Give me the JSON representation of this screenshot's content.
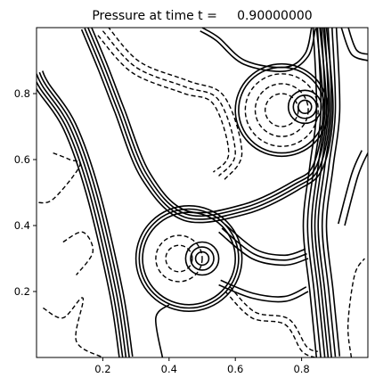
{
  "chart_data": {
    "type": "contour",
    "title": "Pressure at time t =     0.90000000",
    "xlabel": "",
    "ylabel": "",
    "xlim": [
      0.0,
      1.0
    ],
    "ylim": [
      0.0,
      1.0
    ],
    "xticks": [
      {
        "value": 0.2,
        "label": "0.2"
      },
      {
        "value": 0.4,
        "label": "0.4"
      },
      {
        "value": 0.6,
        "label": "0.6"
      },
      {
        "value": 0.8,
        "label": "0.8"
      }
    ],
    "yticks": [
      {
        "value": 0.2,
        "label": "0.2"
      },
      {
        "value": 0.4,
        "label": "0.4"
      },
      {
        "value": 0.6,
        "label": "0.6"
      },
      {
        "value": 0.8,
        "label": "0.8"
      }
    ],
    "grid": false,
    "legend": "none",
    "line_color": "#000000",
    "styles": {
      "positive": "solid",
      "negative": "dashed"
    },
    "features": [
      {
        "kind": "ring",
        "center": [
          0.46,
          0.3
        ],
        "radii": [
          0.14,
          0.15,
          0.16
        ],
        "style": "solid"
      },
      {
        "kind": "ring",
        "center": [
          0.5,
          0.3
        ],
        "radii": [
          0.02,
          0.035,
          0.05
        ],
        "style": "solid"
      },
      {
        "kind": "ring",
        "center": [
          0.43,
          0.3
        ],
        "radii": [
          0.04,
          0.07
        ],
        "style": "dashed"
      },
      {
        "kind": "ring",
        "center": [
          0.74,
          0.75
        ],
        "radii": [
          0.13,
          0.14
        ],
        "style": "solid"
      },
      {
        "kind": "ring",
        "center": [
          0.74,
          0.75
        ],
        "radii": [
          0.05,
          0.08,
          0.11
        ],
        "style": "dashed"
      },
      {
        "kind": "ring",
        "center": [
          0.81,
          0.76
        ],
        "radii": [
          0.02,
          0.035,
          0.05
        ],
        "style": "solid"
      },
      {
        "kind": "band",
        "points": [
          [
            0.27,
            0.0
          ],
          [
            0.24,
            0.2
          ],
          [
            0.17,
            0.5
          ],
          [
            0.1,
            0.7
          ],
          [
            0.02,
            0.82
          ],
          [
            0.0,
            0.86
          ]
        ],
        "offsets": [
          -0.02,
          -0.01,
          0.0,
          0.01,
          0.02
        ],
        "style": "solid"
      },
      {
        "kind": "band",
        "points": [
          [
            0.15,
            1.0
          ],
          [
            0.2,
            0.88
          ],
          [
            0.25,
            0.75
          ],
          [
            0.33,
            0.55
          ],
          [
            0.45,
            0.43
          ],
          [
            0.63,
            0.45
          ],
          [
            0.78,
            0.52
          ],
          [
            0.85,
            0.58
          ],
          [
            0.88,
            0.75
          ],
          [
            0.86,
            1.0
          ]
        ],
        "offsets": [
          -0.015,
          -0.005,
          0.005,
          0.015
        ],
        "style": "solid"
      },
      {
        "kind": "band",
        "points": [
          [
            0.88,
            0.0
          ],
          [
            0.86,
            0.2
          ],
          [
            0.84,
            0.4
          ],
          [
            0.86,
            0.58
          ],
          [
            0.88,
            0.75
          ],
          [
            0.87,
            1.0
          ]
        ],
        "offsets": [
          -0.035,
          -0.022,
          -0.01,
          0.0,
          0.01,
          0.022,
          0.035
        ],
        "style": "solid"
      },
      {
        "kind": "band",
        "points": [
          [
            0.83,
            1.0
          ],
          [
            0.81,
            0.92
          ],
          [
            0.75,
            0.88
          ],
          [
            0.63,
            0.9
          ],
          [
            0.55,
            0.97
          ],
          [
            0.5,
            1.0
          ]
        ],
        "offsets": [
          0.0,
          0.012
        ],
        "style": "solid"
      },
      {
        "kind": "band",
        "points": [
          [
            0.38,
            0.0
          ],
          [
            0.36,
            0.12
          ],
          [
            0.4,
            0.16
          ]
        ],
        "offsets": [
          0.0
        ],
        "style": "solid"
      },
      {
        "kind": "band",
        "points": [
          [
            0.2,
            0.99
          ],
          [
            0.3,
            0.88
          ],
          [
            0.45,
            0.82
          ],
          [
            0.55,
            0.78
          ],
          [
            0.6,
            0.62
          ],
          [
            0.55,
            0.55
          ]
        ],
        "offsets": [
          -0.02,
          0.0,
          0.02
        ],
        "style": "dashed"
      },
      {
        "kind": "band",
        "points": [
          [
            0.05,
            0.62
          ],
          [
            0.1,
            0.6
          ],
          [
            0.13,
            0.58
          ],
          [
            0.05,
            0.48
          ],
          [
            0.0,
            0.47
          ]
        ],
        "offsets": [
          0.0
        ],
        "style": "dashed"
      },
      {
        "kind": "band",
        "points": [
          [
            0.08,
            0.35
          ],
          [
            0.14,
            0.38
          ],
          [
            0.17,
            0.32
          ],
          [
            0.12,
            0.25
          ]
        ],
        "offsets": [
          0.0
        ],
        "style": "dashed"
      },
      {
        "kind": "band",
        "points": [
          [
            0.02,
            0.15
          ],
          [
            0.08,
            0.12
          ],
          [
            0.14,
            0.18
          ],
          [
            0.12,
            0.05
          ],
          [
            0.2,
            0.0
          ]
        ],
        "offsets": [
          0.0
        ],
        "style": "dashed"
      },
      {
        "kind": "band",
        "points": [
          [
            0.57,
            0.2
          ],
          [
            0.65,
            0.12
          ],
          [
            0.75,
            0.1
          ],
          [
            0.8,
            0.02
          ],
          [
            0.84,
            0.0
          ]
        ],
        "offsets": [
          0.0,
          0.02
        ],
        "style": "dashed"
      },
      {
        "kind": "band",
        "points": [
          [
            0.95,
            0.0
          ],
          [
            0.94,
            0.1
          ],
          [
            0.96,
            0.25
          ],
          [
            0.99,
            0.3
          ]
        ],
        "offsets": [
          0.0
        ],
        "style": "dashed"
      },
      {
        "kind": "band",
        "points": [
          [
            0.93,
            0.4
          ],
          [
            0.97,
            0.55
          ],
          [
            1.0,
            0.62
          ]
        ],
        "offsets": [
          0.0,
          0.02
        ],
        "style": "solid"
      },
      {
        "kind": "band",
        "points": [
          [
            0.92,
            1.0
          ],
          [
            0.95,
            0.92
          ],
          [
            1.0,
            0.9
          ]
        ],
        "offsets": [
          0.0,
          0.02
        ],
        "style": "solid"
      },
      {
        "kind": "band",
        "points": [
          [
            0.55,
            0.38
          ],
          [
            0.65,
            0.3
          ],
          [
            0.75,
            0.28
          ],
          [
            0.82,
            0.3
          ]
        ],
        "offsets": [
          0.0,
          0.015,
          0.03
        ],
        "style": "solid"
      },
      {
        "kind": "band",
        "points": [
          [
            0.55,
            0.22
          ],
          [
            0.65,
            0.18
          ],
          [
            0.75,
            0.17
          ],
          [
            0.82,
            0.2
          ]
        ],
        "offsets": [
          0.0,
          0.015
        ],
        "style": "solid"
      }
    ]
  }
}
